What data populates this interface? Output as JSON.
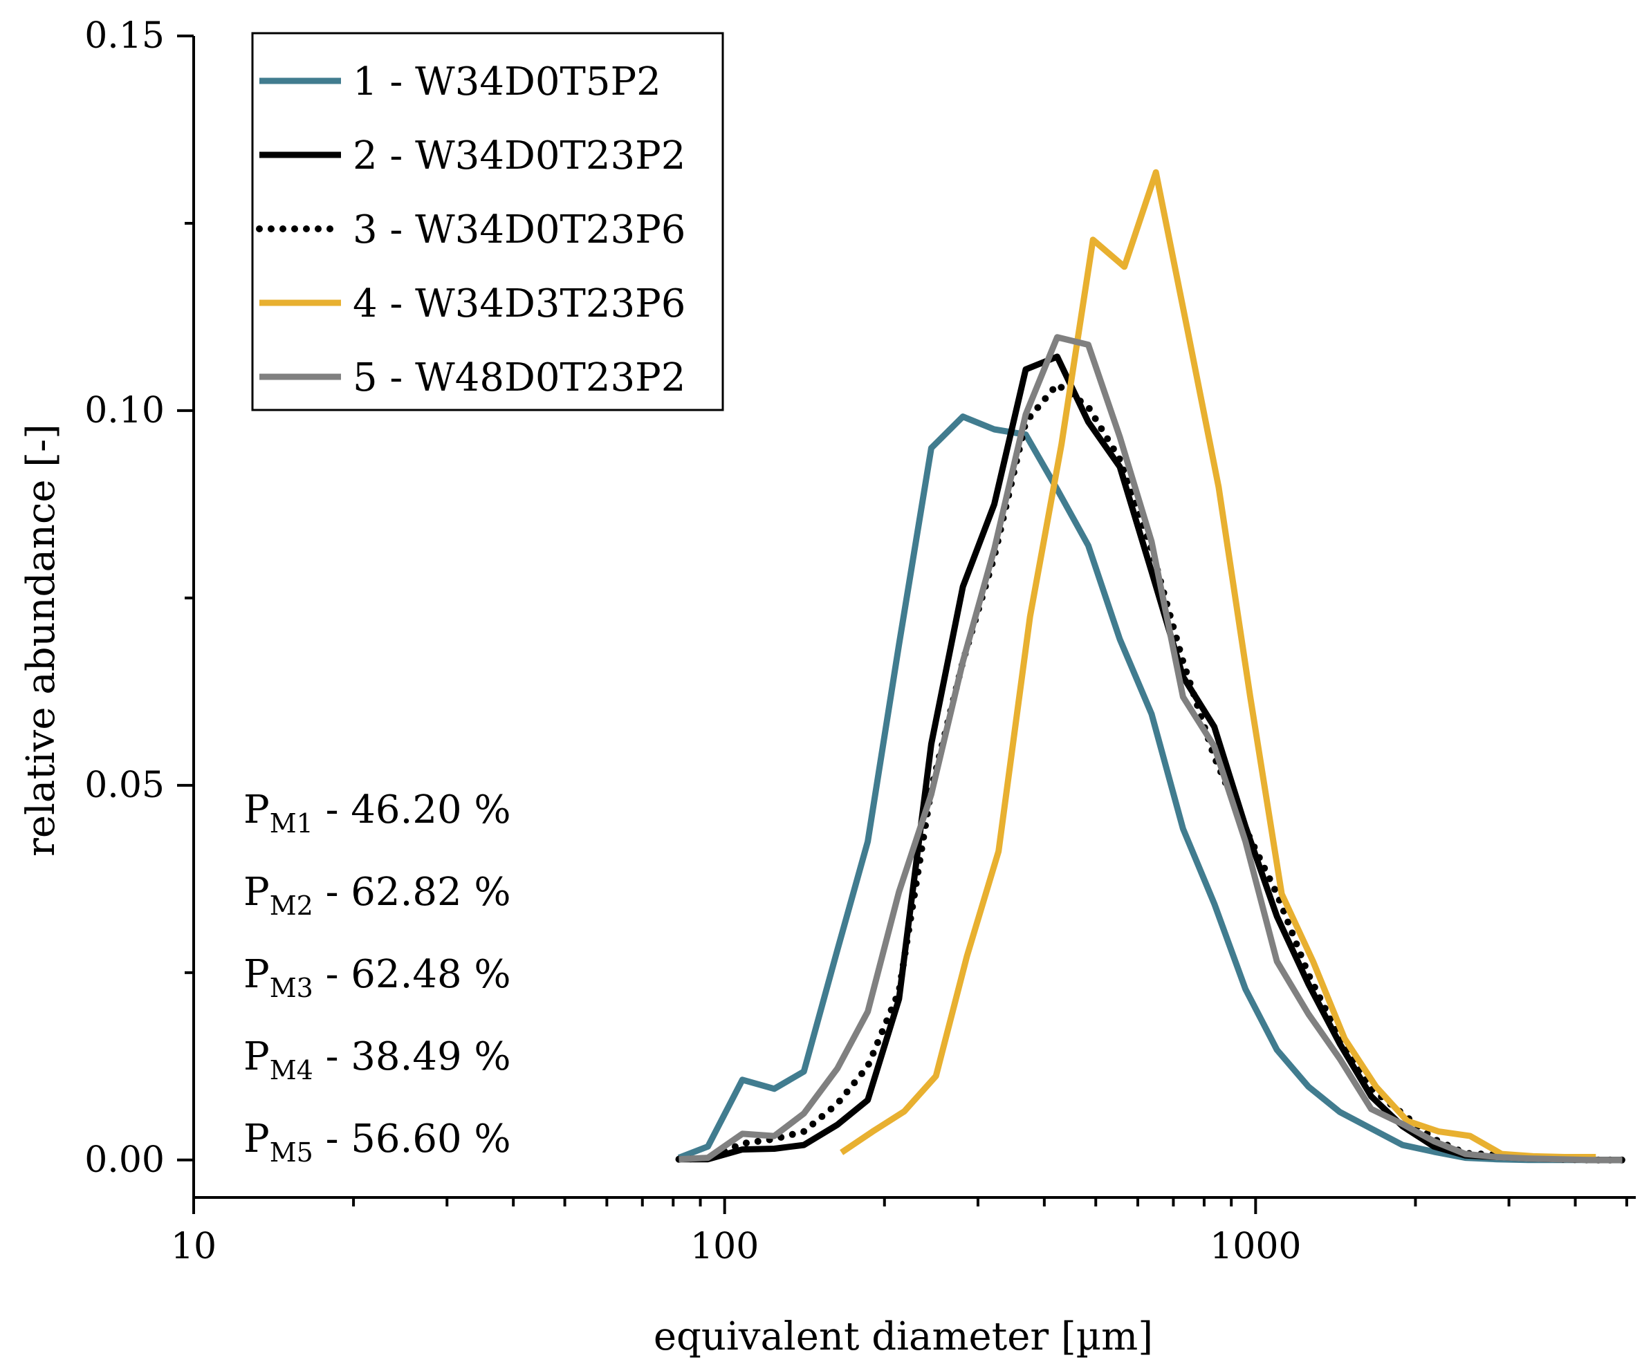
{
  "chart_data": {
    "type": "line",
    "xscale": "log",
    "xlabel": "equivalent diameter [µm]",
    "ylabel": "relative abundance [-]",
    "xlim": [
      10,
      5200
    ],
    "ylim": [
      -0.005,
      0.15
    ],
    "x_ticks": [
      {
        "value": 10,
        "label": "10"
      },
      {
        "value": 100,
        "label": "100"
      },
      {
        "value": 1000,
        "label": "1000"
      }
    ],
    "y_ticks": [
      {
        "value": 0,
        "label": "0.00"
      },
      {
        "value": 0.05,
        "label": "0.05"
      },
      {
        "value": 0.1,
        "label": "0.10"
      },
      {
        "value": 0.15,
        "label": "0.15"
      }
    ],
    "grid": false,
    "legend_position": "top-left",
    "series": [
      {
        "name": "1 - W34D0T5P2",
        "color": "#417c8f",
        "dash": "solid",
        "x": [
          82,
          93,
          108,
          124,
          141,
          163,
          186,
          213,
          245,
          281,
          322,
          369,
          423,
          484,
          555,
          637,
          730,
          836,
          957,
          1097,
          1257,
          1441,
          1651,
          1891,
          2167,
          2483,
          2845,
          3260,
          3735,
          4280,
          4904
        ],
        "y": [
          0.0003,
          0.0018,
          0.0107,
          0.0095,
          0.0118,
          0.028,
          0.0425,
          0.0688,
          0.095,
          0.0992,
          0.0975,
          0.0968,
          0.0895,
          0.082,
          0.0695,
          0.0595,
          0.0442,
          0.0342,
          0.0228,
          0.0147,
          0.0098,
          0.0064,
          0.0042,
          0.002,
          0.0011,
          0.0003,
          0.0001,
          0.0,
          0.0,
          0.0,
          0.0
        ]
      },
      {
        "name": "2 - W34D0T23P2",
        "color": "#000000",
        "dash": "solid",
        "x": [
          82,
          93,
          108,
          124,
          141,
          163,
          186,
          213,
          245,
          281,
          322,
          369,
          423,
          484,
          555,
          637,
          730,
          836,
          957,
          1097,
          1257,
          1441,
          1651,
          1891,
          2167,
          2483,
          2845,
          3260,
          3735,
          4280,
          4904
        ],
        "y": [
          0.0001,
          0.0001,
          0.0014,
          0.0015,
          0.002,
          0.0047,
          0.008,
          0.0215,
          0.0555,
          0.0765,
          0.0875,
          0.1055,
          0.1072,
          0.0985,
          0.0925,
          0.0785,
          0.0645,
          0.0578,
          0.0445,
          0.0325,
          0.0235,
          0.0155,
          0.0085,
          0.0045,
          0.0018,
          0.0006,
          0.0004,
          0.0002,
          0.0001,
          0.0,
          0.0
        ]
      },
      {
        "name": "3 - W34D0T23P6",
        "color": "#000000",
        "dash": "dotted",
        "x": [
          82,
          93,
          108,
          124,
          141,
          163,
          186,
          213,
          245,
          281,
          322,
          369,
          423,
          484,
          555,
          637,
          730,
          836,
          957,
          1097,
          1257,
          1441,
          1651,
          1891,
          2167,
          2483,
          2845,
          3260,
          3735,
          4280,
          4904
        ],
        "y": [
          0.0001,
          0.0002,
          0.0022,
          0.0028,
          0.0038,
          0.0075,
          0.0125,
          0.0225,
          0.0495,
          0.0665,
          0.0805,
          0.0985,
          0.1035,
          0.1005,
          0.0935,
          0.0815,
          0.0665,
          0.0538,
          0.0442,
          0.0355,
          0.0248,
          0.0162,
          0.0095,
          0.0062,
          0.0028,
          0.0009,
          0.0007,
          0.0004,
          0.0001,
          0.0,
          0.0
        ]
      },
      {
        "name": "4 - W34D3T23P6",
        "color": "#e8b030",
        "dash": "solid",
        "x": [
          166,
          190,
          218,
          250,
          286,
          328,
          376,
          431,
          494,
          566,
          649,
          744,
          852,
          977,
          1120,
          1283,
          1471,
          1685,
          1931,
          2213,
          2536,
          2906,
          3330,
          3816,
          4373
        ],
        "y": [
          0.001,
          0.0038,
          0.0065,
          0.0112,
          0.0272,
          0.0412,
          0.0725,
          0.0955,
          0.1228,
          0.1192,
          0.1318,
          0.1108,
          0.0898,
          0.0618,
          0.0355,
          0.0265,
          0.0162,
          0.0098,
          0.0052,
          0.0038,
          0.0032,
          0.0008,
          0.0005,
          0.0004,
          0.0004
        ]
      },
      {
        "name": "5 - W48D0T23P2",
        "color": "#808080",
        "dash": "solid",
        "x": [
          82,
          93,
          108,
          124,
          141,
          163,
          186,
          213,
          245,
          281,
          322,
          369,
          423,
          484,
          555,
          637,
          730,
          836,
          957,
          1097,
          1257,
          1441,
          1651,
          1891,
          2167,
          2483,
          2845,
          3260,
          3735,
          4280,
          4904
        ],
        "y": [
          0.0001,
          0.0003,
          0.0035,
          0.0032,
          0.0062,
          0.0122,
          0.0198,
          0.0358,
          0.0488,
          0.0665,
          0.0815,
          0.0995,
          0.1098,
          0.1088,
          0.0965,
          0.0825,
          0.0618,
          0.0552,
          0.0425,
          0.0265,
          0.0195,
          0.0135,
          0.0068,
          0.0048,
          0.0025,
          0.0008,
          0.0004,
          0.0002,
          0.0001,
          0.0,
          0.0
        ]
      }
    ],
    "annotations": [
      {
        "main": "P",
        "sub": "M1",
        "text": " - 46.20 %"
      },
      {
        "main": "P",
        "sub": "M2",
        "text": " - 62.82 %"
      },
      {
        "main": "P",
        "sub": "M3",
        "text": " - 62.48 %"
      },
      {
        "main": "P",
        "sub": "M4",
        "text": " - 38.49 %"
      },
      {
        "main": "P",
        "sub": "M5",
        "text": " - 56.60 %"
      }
    ]
  }
}
